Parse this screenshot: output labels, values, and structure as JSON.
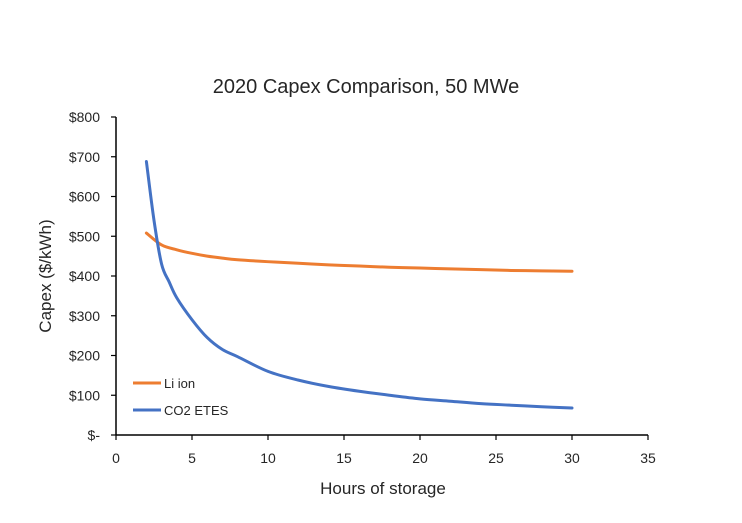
{
  "chart_data": {
    "type": "line",
    "title": "2020 Capex Comparison, 50 MWe",
    "xlabel": "Hours of storage",
    "ylabel": "Capex ($/kWh)",
    "xlim": [
      0,
      35
    ],
    "ylim": [
      0,
      800
    ],
    "x_ticks": [
      0,
      5,
      10,
      15,
      20,
      25,
      30,
      35
    ],
    "x_tick_labels": [
      "0",
      "5",
      "10",
      "15",
      "20",
      "25",
      "30",
      "35"
    ],
    "y_ticks": [
      0,
      100,
      200,
      300,
      400,
      500,
      600,
      700,
      800
    ],
    "y_tick_labels": [
      "$-",
      "$100",
      "$200",
      "$300",
      "$400",
      "$500",
      "$600",
      "$700",
      "$800"
    ],
    "grid": false,
    "legend_position": "bottom-left",
    "series": [
      {
        "name": "Li ion",
        "color": "#ED7D31",
        "x": [
          2,
          3,
          4,
          5,
          6,
          7,
          8,
          10,
          12,
          14,
          16,
          18,
          20,
          22,
          24,
          26,
          28,
          30
        ],
        "y": [
          508,
          478,
          466,
          457,
          450,
          445,
          441,
          436,
          432,
          428,
          425,
          422,
          420,
          418,
          416,
          414,
          413,
          412
        ]
      },
      {
        "name": "CO2 ETES",
        "color": "#4472C4",
        "x": [
          2,
          2.5,
          3,
          3.5,
          4,
          5,
          6,
          7,
          8,
          10,
          12,
          14,
          16,
          18,
          20,
          22,
          24,
          26,
          28,
          30
        ],
        "y": [
          688,
          540,
          430,
          385,
          345,
          290,
          245,
          215,
          197,
          160,
          138,
          122,
          110,
          100,
          91,
          85,
          79,
          75,
          71,
          68
        ]
      }
    ]
  }
}
